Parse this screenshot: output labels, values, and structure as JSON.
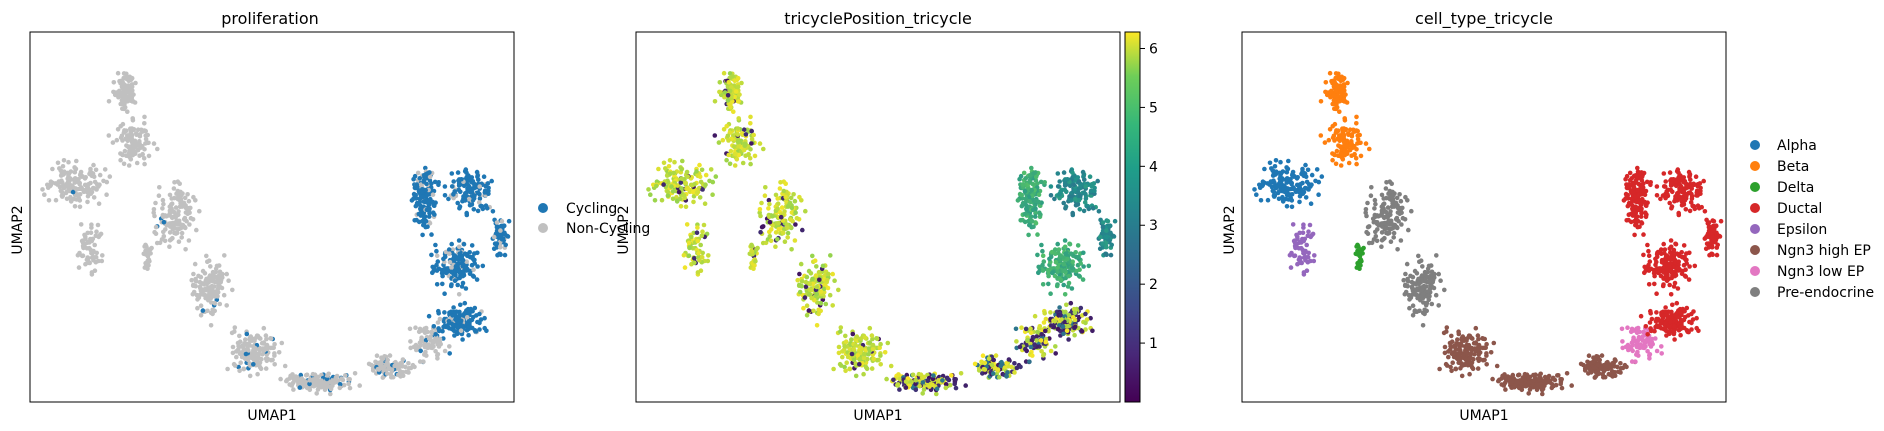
{
  "chart_data": [
    {
      "type": "scatter",
      "title": "proliferation",
      "xlabel": "UMAP1",
      "ylabel": "UMAP2",
      "color_by": "category",
      "legend": {
        "placement": "right",
        "entries": [
          {
            "label": "Cycling",
            "color": "#1f77b4"
          },
          {
            "label": "Non-Cycling",
            "color": "#c0c0c0"
          }
        ]
      }
    },
    {
      "type": "scatter",
      "title": "tricyclePosition_tricycle",
      "xlabel": "UMAP1",
      "ylabel": "UMAP2",
      "color_by": "continuous",
      "colormap": "viridis",
      "colorbar": {
        "min": 0,
        "max": 6.28,
        "ticks": [
          "1",
          "2",
          "3",
          "4",
          "5",
          "6"
        ],
        "tick_values": [
          1,
          2,
          3,
          4,
          5,
          6
        ]
      }
    },
    {
      "type": "scatter",
      "title": "cell_type_tricycle",
      "xlabel": "UMAP1",
      "ylabel": "UMAP2",
      "color_by": "category",
      "legend": {
        "placement": "right",
        "entries": [
          {
            "label": "Alpha",
            "color": "#1f77b4"
          },
          {
            "label": "Beta",
            "color": "#ff7f0e"
          },
          {
            "label": "Delta",
            "color": "#2ca02c"
          },
          {
            "label": "Ductal",
            "color": "#d62728"
          },
          {
            "label": "Epsilon",
            "color": "#9467bd"
          },
          {
            "label": "Ngn3 high EP",
            "color": "#8c564b"
          },
          {
            "label": "Ngn3 low EP",
            "color": "#e377c2"
          },
          {
            "label": "Pre-endocrine",
            "color": "#7f7f7f"
          }
        ]
      }
    }
  ]
}
